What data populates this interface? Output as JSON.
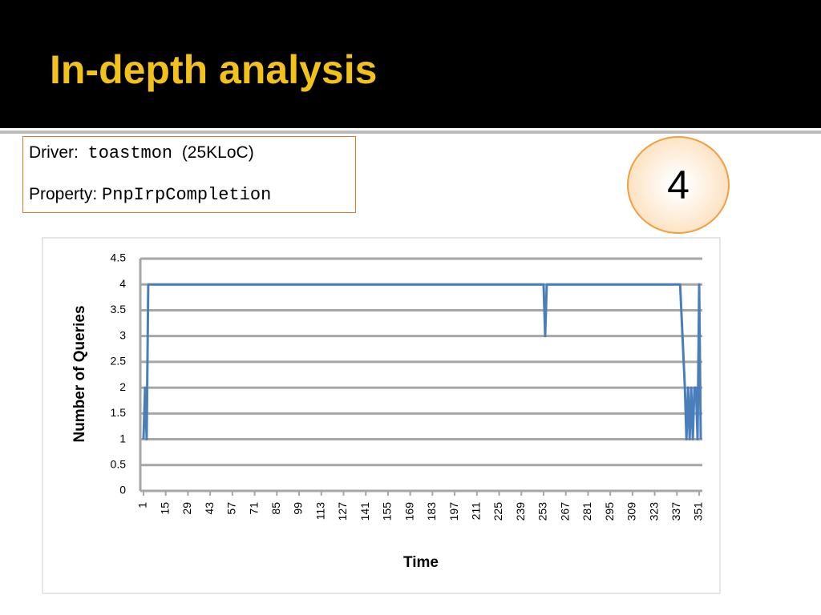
{
  "slide": {
    "title": "In-depth analysis",
    "driver_label": "Driver:",
    "driver": "toastmon",
    "driver_size": "(25KLoC)",
    "property_label": "Property:",
    "property": "PnpIrpCompletion",
    "badge": "4"
  },
  "chart_data": {
    "type": "line",
    "x_label": "Time",
    "y_label": "Number of Queries",
    "x": [
      1,
      2,
      3,
      4,
      253,
      254,
      255,
      339,
      342,
      343,
      344,
      345,
      346,
      347,
      348,
      349,
      350,
      351,
      352
    ],
    "series": [
      {
        "name": "Number of Queries",
        "color": "#4a7ebb",
        "values": [
          1,
          2,
          1,
          4,
          4,
          3,
          4,
          4,
          2,
          1,
          2,
          1,
          2,
          1,
          2,
          2,
          1,
          4,
          1
        ]
      }
    ],
    "xlim": [
      -1,
      353
    ],
    "xticks": [
      1,
      15,
      29,
      43,
      57,
      71,
      85,
      99,
      113,
      127,
      141,
      155,
      169,
      183,
      197,
      211,
      225,
      239,
      253,
      267,
      281,
      295,
      309,
      323,
      337,
      351
    ],
    "ylim": [
      0,
      4.5
    ],
    "yticks": [
      0,
      0.5,
      1,
      1.5,
      2,
      2.5,
      3,
      3.5,
      4,
      4.5
    ],
    "grid": true
  }
}
